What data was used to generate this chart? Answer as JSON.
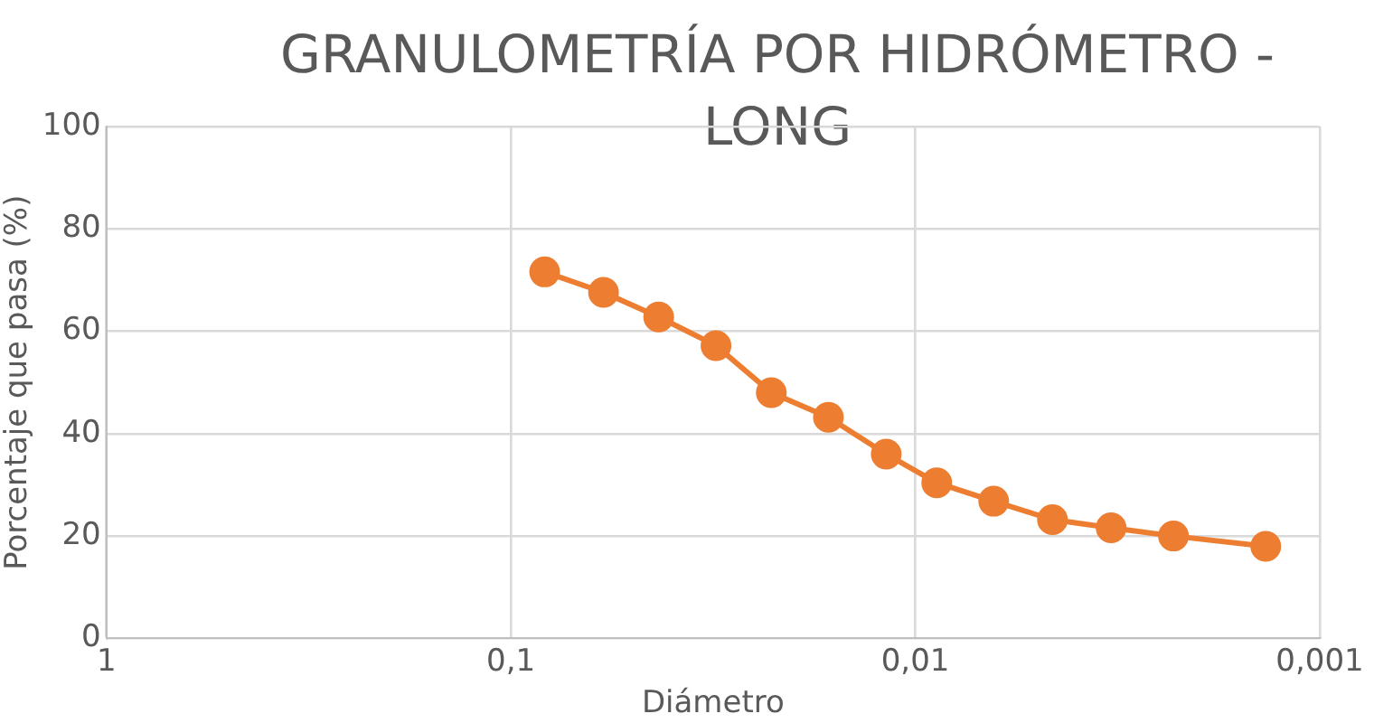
{
  "chart_data": {
    "type": "line",
    "title": "GRANULOMETRÍA POR HIDRÓMETRO - LONG",
    "xlabel": "Diámetro",
    "ylabel": "Porcentaje que pasa (%)",
    "x": [
      0.0825,
      0.059,
      0.0431,
      0.0311,
      0.0227,
      0.0164,
      0.0118,
      0.00885,
      0.0064,
      0.00458,
      0.00328,
      0.0023,
      0.00136
    ],
    "series": [
      {
        "color": "#ed7d31",
        "values": [
          71.6,
          67.6,
          62.8,
          57.2,
          48,
          43.2,
          36,
          30.4,
          26.8,
          23.2,
          21.6,
          20,
          18
        ]
      }
    ],
    "log": "x",
    "xlim": [
      1,
      0.001
    ],
    "xticks": [
      {
        "value": 1,
        "label": "1"
      },
      {
        "value": 0.1,
        "label": "0,1"
      },
      {
        "value": 0.01,
        "label": "0,01"
      },
      {
        "value": 0.001,
        "label": "0,001"
      }
    ],
    "ylim": [
      0,
      100
    ],
    "yticks": [
      0,
      20,
      40,
      60,
      80,
      100
    ],
    "grid": true,
    "legend": false,
    "marker": "circle",
    "line_style": "solid"
  }
}
